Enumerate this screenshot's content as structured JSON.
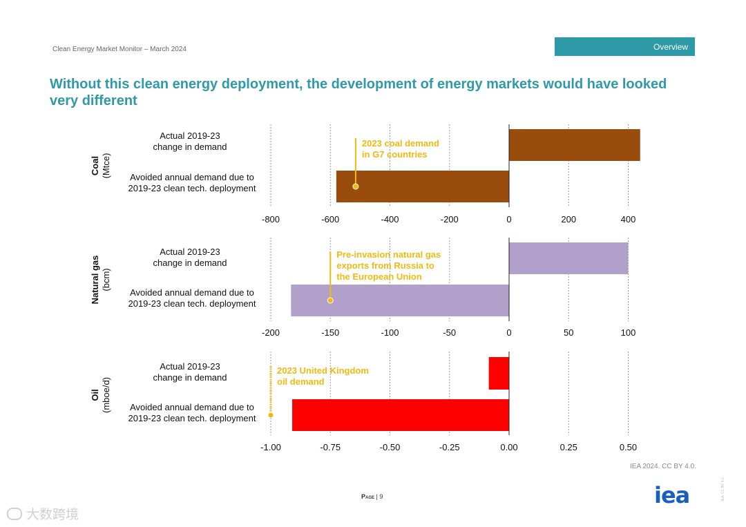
{
  "header": {
    "subtitle": "Clean Energy Market Monitor – March 2024",
    "tab_label": "Overview"
  },
  "title": "Without this clean energy deployment, the development of energy markets would have looked very different",
  "colors": {
    "accent": "#2e9aa8",
    "coal": "#994c0c",
    "gas": "#b0a0ca",
    "oil": "#ff0000",
    "annotation": "#f2b90f"
  },
  "chart_data": [
    {
      "type": "bar",
      "orientation": "horizontal",
      "group_label": "Coal",
      "unit": "(Mtce)",
      "categories": [
        "Actual 2019-23\nchange  in demand",
        "Avoided annual demand due to\n2019-23 clean tech. deployment"
      ],
      "values": [
        440,
        -580
      ],
      "xlim": [
        -800,
        450
      ],
      "ticks": [
        -800,
        -600,
        -400,
        -200,
        0,
        200,
        400
      ],
      "tick_labels": [
        "-800",
        "-600",
        "-400",
        "-200",
        "0",
        "200",
        "400"
      ],
      "color_key": "coal",
      "annotation": {
        "text": "2023 coal demand\nin G7 countries",
        "value": -515
      }
    },
    {
      "type": "bar",
      "orientation": "horizontal",
      "group_label": "Natural gas",
      "unit": "(bcm)",
      "categories": [
        "Actual 2019-23\nchange  in demand",
        "Avoided annual demand due to\n2019-23 clean tech. deployment"
      ],
      "values": [
        100,
        -183
      ],
      "xlim": [
        -200,
        112
      ],
      "ticks": [
        -200,
        -150,
        -100,
        -50,
        0,
        50,
        100
      ],
      "tick_labels": [
        "-200",
        "-150",
        "-100",
        "-50",
        "0",
        "50",
        "100"
      ],
      "color_key": "gas",
      "annotation": {
        "text": "Pre-invasion natural gas\nexports from Russia to\nthe European Union",
        "value": -150
      }
    },
    {
      "type": "bar",
      "orientation": "horizontal",
      "group_label": "Oil",
      "unit": "(mboe/d)",
      "categories": [
        "Actual 2019-23\nchange  in demand",
        "Avoided annual demand due to\n2019-23 clean tech. deployment"
      ],
      "values": [
        -0.085,
        -0.91
      ],
      "xlim": [
        -1.0,
        0.56
      ],
      "ticks": [
        -1.0,
        -0.75,
        -0.5,
        -0.25,
        0,
        0.25,
        0.5
      ],
      "tick_labels": [
        "-1.00",
        "-0.75",
        "-0.50",
        "-0.25",
        "0.00",
        "0.25",
        "0.50"
      ],
      "color_key": "oil",
      "annotation": {
        "text": "2023 United Kingdom\noil demand",
        "value": -1.0
      }
    }
  ],
  "footer": {
    "source": "IEA 2024. CC BY 4.0.",
    "page_label": "Page",
    "page_number": "| 9",
    "logo_text": "iea",
    "license_vertical": "IEA. CC BY 4.0.",
    "watermark_text": "大数跨境"
  }
}
